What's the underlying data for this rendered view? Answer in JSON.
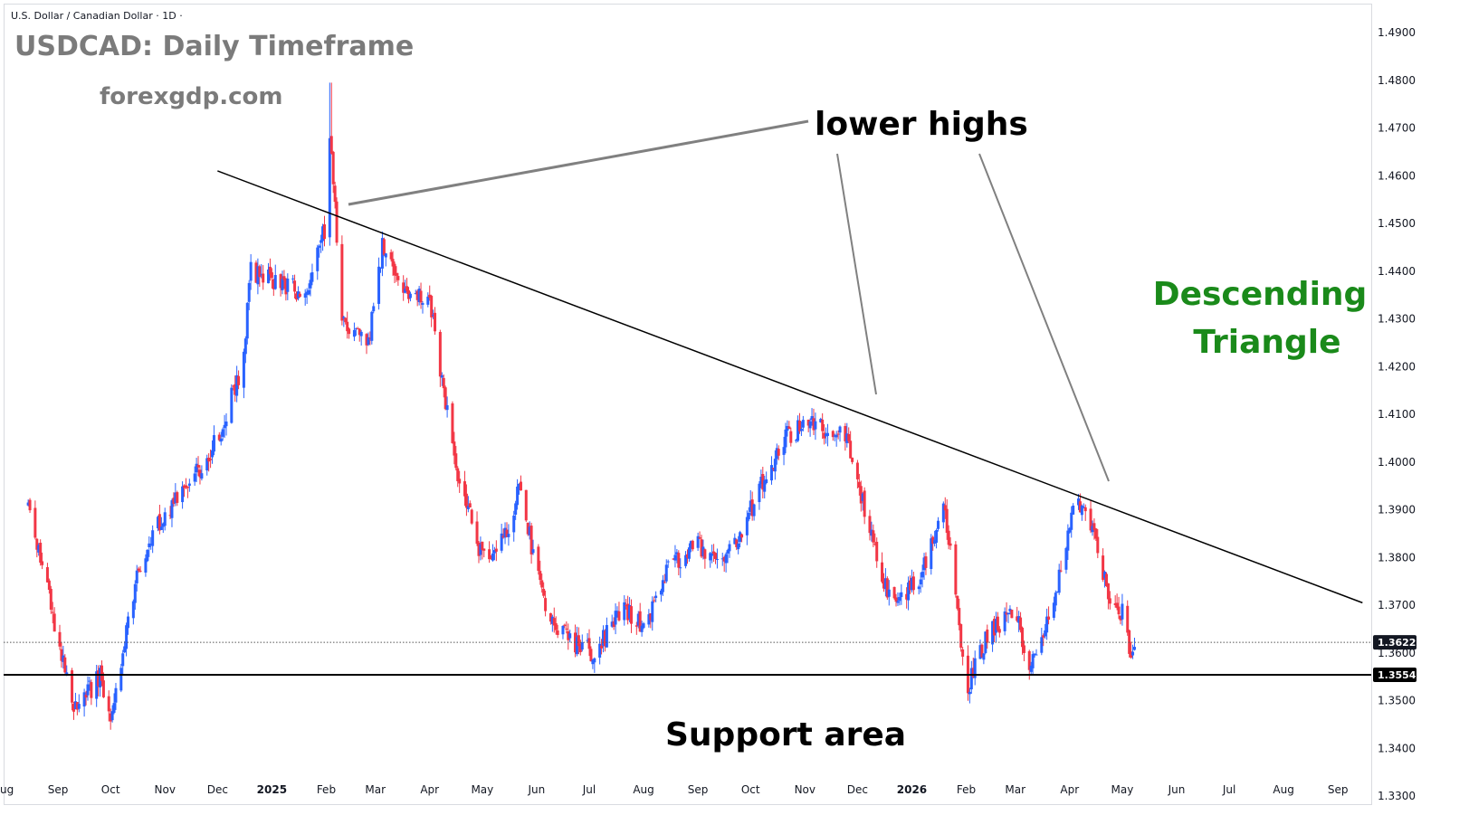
{
  "header": {
    "symbol_line": "U.S. Dollar / Canadian Dollar · 1D ·"
  },
  "title": "USDCAD: Daily Timeframe",
  "site": "forexgdp.com",
  "annotations": {
    "lower_highs": "lower highs",
    "support": "Support area",
    "pattern_line1": "Descending",
    "pattern_line2": "Triangle"
  },
  "colors": {
    "up": "#2962ff",
    "down": "#f23645",
    "pattern": "#1a8a1a",
    "trendline": "#000000",
    "arrow": "#808080"
  },
  "chart_data": {
    "type": "candlestick",
    "symbol": "USDCAD",
    "timeframe": "1D",
    "ylim": [
      1.33,
      1.49
    ],
    "y_ticks": [
      "1.4900",
      "1.4800",
      "1.4700",
      "1.4600",
      "1.4500",
      "1.4400",
      "1.4300",
      "1.4200",
      "1.4100",
      "1.4000",
      "1.3900",
      "1.3800",
      "1.3700",
      "1.3600",
      "1.3500",
      "1.3400",
      "1.3300"
    ],
    "x_labels": [
      "ug",
      "Sep",
      "Oct",
      "Nov",
      "Dec",
      "2025",
      "Feb",
      "Mar",
      "Apr",
      "May",
      "Jun",
      "Jul",
      "Aug",
      "Sep",
      "Oct",
      "Nov",
      "Dec",
      "2026",
      "Feb",
      "Mar",
      "Apr",
      "May",
      "Jun",
      "Jul",
      "Aug",
      "Sep"
    ],
    "current_price": "1.3622",
    "support_level": "1.3554",
    "support_value": 1.3554,
    "current_value": 1.3622,
    "trendline": {
      "start": [
        "2024-12-01",
        1.461
      ],
      "end": [
        "2026-09-15",
        1.3705
      ]
    },
    "anchors": [
      [
        "2024-08-15",
        1.391
      ],
      [
        "2024-08-28",
        1.37
      ],
      [
        "2024-09-10",
        1.348
      ],
      [
        "2024-09-25",
        1.355
      ],
      [
        "2024-10-01",
        1.345
      ],
      [
        "2024-10-15",
        1.375
      ],
      [
        "2024-11-01",
        1.39
      ],
      [
        "2024-11-15",
        1.395
      ],
      [
        "2024-12-01",
        1.405
      ],
      [
        "2024-12-15",
        1.42
      ],
      [
        "2024-12-20",
        1.44
      ],
      [
        "2025-01-05",
        1.438
      ],
      [
        "2025-01-20",
        1.435
      ],
      [
        "2025-02-01",
        1.45
      ],
      [
        "2025-02-03",
        1.47
      ],
      [
        "2025-02-10",
        1.43
      ],
      [
        "2025-02-25",
        1.425
      ],
      [
        "2025-03-05",
        1.445
      ],
      [
        "2025-03-20",
        1.435
      ],
      [
        "2025-04-01",
        1.435
      ],
      [
        "2025-04-15",
        1.4
      ],
      [
        "2025-05-01",
        1.38
      ],
      [
        "2025-05-15",
        1.385
      ],
      [
        "2025-05-22",
        1.395
      ],
      [
        "2025-06-05",
        1.37
      ],
      [
        "2025-06-20",
        1.362
      ],
      [
        "2025-07-05",
        1.36
      ],
      [
        "2025-07-20",
        1.37
      ],
      [
        "2025-08-01",
        1.365
      ],
      [
        "2025-08-15",
        1.378
      ],
      [
        "2025-09-01",
        1.383
      ],
      [
        "2025-09-15",
        1.378
      ],
      [
        "2025-10-01",
        1.39
      ],
      [
        "2025-10-20",
        1.405
      ],
      [
        "2025-11-05",
        1.409
      ],
      [
        "2025-11-15",
        1.405
      ],
      [
        "2025-11-22",
        1.408
      ],
      [
        "2025-12-05",
        1.39
      ],
      [
        "2025-12-20",
        1.37
      ],
      [
        "2026-01-05",
        1.376
      ],
      [
        "2026-01-20",
        1.39
      ],
      [
        "2026-02-01",
        1.352
      ],
      [
        "2026-02-15",
        1.365
      ],
      [
        "2026-03-01",
        1.368
      ],
      [
        "2026-03-10",
        1.357
      ],
      [
        "2026-03-25",
        1.375
      ],
      [
        "2026-04-05",
        1.392
      ],
      [
        "2026-04-15",
        1.385
      ],
      [
        "2026-04-25",
        1.368
      ],
      [
        "2026-05-01",
        1.369
      ],
      [
        "2026-05-06",
        1.36
      ],
      [
        "2026-05-10",
        1.362
      ]
    ]
  }
}
